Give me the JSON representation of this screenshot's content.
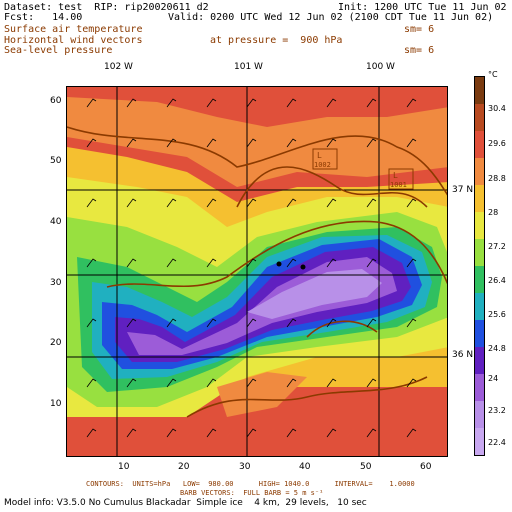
{
  "header": {
    "dataset": "Dataset: test  RIP: rip20020611 d2",
    "init": "Init: 1200 UTC Tue 11 Jun 02",
    "fcst": "Fcst:   14.00",
    "valid": "Valid: 0200 UTC Wed 12 Jun 02 (2100 CDT Tue 11 Jun 02)",
    "field1": "Surface air temperature",
    "field1_sm": "sm= 6",
    "field2": "Horizontal wind vectors",
    "pressure": "at pressure =  900 hPa",
    "field3": "Sea-level pressure",
    "field3_sm": "sm= 6"
  },
  "map": {
    "lon_labels": [
      "102 W",
      "101 W",
      "100 W"
    ],
    "lat_labels": [
      "37 N",
      "36 N"
    ],
    "y_ticks": [
      "60",
      "50",
      "40",
      "30",
      "20",
      "10"
    ],
    "x_ticks": [
      "10",
      "20",
      "30",
      "40",
      "50",
      "60"
    ],
    "lows": [
      {
        "symbol": "L",
        "value": "1002"
      },
      {
        "symbol": "L",
        "value": "1001"
      }
    ]
  },
  "colorbar": {
    "unit": "°C",
    "labels": [
      "30.4",
      "29.6",
      "28.8",
      "28",
      "27.2",
      "26.4",
      "25.6",
      "24.8",
      "24",
      "23.2",
      "22.4"
    ],
    "colors": [
      "#7a3b10",
      "#b84a20",
      "#e0503a",
      "#f08a40",
      "#f5c030",
      "#e8e840",
      "#98e040",
      "#30c060",
      "#20b0c0",
      "#2050e0",
      "#6020c0",
      "#9c5cd8",
      "#b890e8",
      "#c8a8f0"
    ]
  },
  "footer": {
    "line1": "CONTOURS:  UNITS=hPa   LOW=  980.00      HIGH= 1040.0      INTERVAL=    1.0000",
    "line2": "BARB VECTORS:  FULL BARB = 5 m s⁻¹",
    "model": "Model info: V3.5.0 No Cumulus Blackadar  Simple ice    4 km,  29 levels,   10 sec"
  }
}
